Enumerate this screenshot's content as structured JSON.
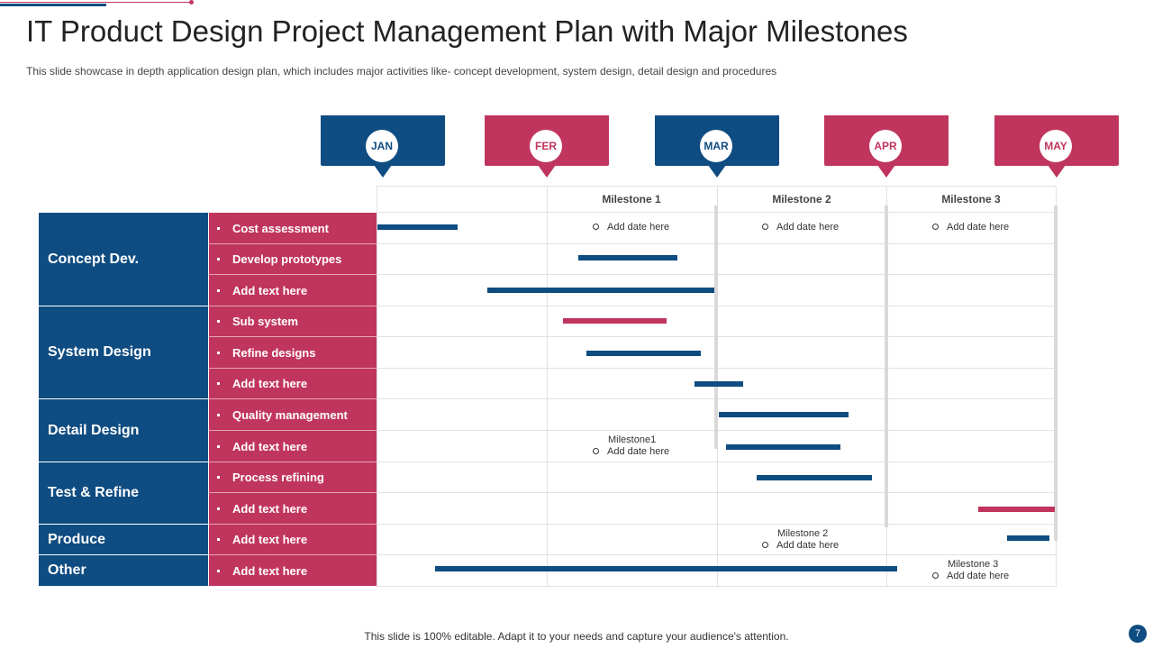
{
  "title": "IT Product Design Project Management Plan with Major Milestones",
  "subtitle": "This slide showcase in depth application design plan, which includes major activities like- concept development, system design, detail design and procedures",
  "colors": {
    "blue": "#0f4c81",
    "red": "#c0355e"
  },
  "months": [
    {
      "label": "JAN",
      "color": "blue"
    },
    {
      "label": "FER",
      "color": "red"
    },
    {
      "label": "MAR",
      "color": "blue"
    },
    {
      "label": "APR",
      "color": "red"
    },
    {
      "label": "MAY",
      "color": "red"
    }
  ],
  "milestone_headers": [
    "Milestone 1",
    "Milestone 2",
    "Milestone 3"
  ],
  "date_placeholder": "Add date here",
  "milestone_notes": [
    {
      "label": "Milestone1",
      "text": "Add date here"
    },
    {
      "label": "Milestone 2",
      "text": "Add date here"
    },
    {
      "label": "Milestone 3",
      "text": "Add date here"
    }
  ],
  "groups": [
    {
      "label": "Concept Dev."
    },
    {
      "label": "System Design"
    },
    {
      "label": "Detail Design"
    },
    {
      "label": "Test & Refine"
    },
    {
      "label": "Produce"
    },
    {
      "label": "Other"
    }
  ],
  "tasks": [
    {
      "label": "Cost assessment"
    },
    {
      "label": "Develop prototypes"
    },
    {
      "label": "Add text here"
    },
    {
      "label": "Sub system"
    },
    {
      "label": "Refine designs"
    },
    {
      "label": "Add text here"
    },
    {
      "label": "Quality management"
    },
    {
      "label": "Add text here"
    },
    {
      "label": "Process refining"
    },
    {
      "label": "Add text here"
    },
    {
      "label": "Add text here"
    },
    {
      "label": "Add text here"
    }
  ],
  "footer": "This slide is 100% editable. Adapt it to your needs and capture your audience's attention.",
  "page_number": "7"
}
